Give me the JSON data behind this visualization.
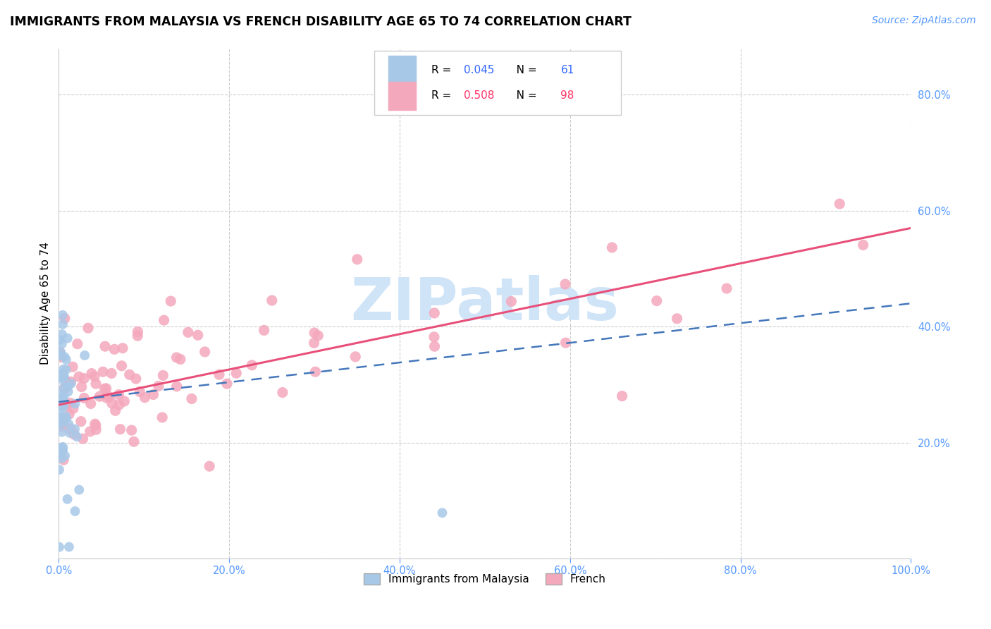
{
  "title": "IMMIGRANTS FROM MALAYSIA VS FRENCH DISABILITY AGE 65 TO 74 CORRELATION CHART",
  "source": "Source: ZipAtlas.com",
  "ylabel": "Disability Age 65 to 74",
  "xlim": [
    0.0,
    1.0
  ],
  "ylim": [
    0.0,
    0.88
  ],
  "xticks": [
    0.0,
    0.2,
    0.4,
    0.6,
    0.8,
    1.0
  ],
  "xtick_labels": [
    "0.0%",
    "20.0%",
    "40.0%",
    "60.0%",
    "80.0%",
    "100.0%"
  ],
  "yticks": [
    0.0,
    0.2,
    0.4,
    0.6,
    0.8
  ],
  "ytick_labels_right": [
    "",
    "20.0%",
    "40.0%",
    "60.0%",
    "80.0%"
  ],
  "background_color": "#ffffff",
  "grid_color": "#cccccc",
  "watermark": "ZIPatlas",
  "malaysia_color": "#a8c8e8",
  "malaysia_line_color": "#4477bb",
  "french_color": "#f4a8bc",
  "french_line_color": "#e8507a",
  "legend_blue_color": "#3366ff",
  "legend_pink_color": "#ff3366",
  "axis_tick_color": "#5599ff",
  "watermark_color": "#d0e4f8",
  "title_fontsize": 12.5,
  "source_fontsize": 10,
  "watermark_fontsize": 60,
  "malaysia_R": 0.045,
  "malaysia_N": 61,
  "french_R": 0.508,
  "french_N": 98
}
